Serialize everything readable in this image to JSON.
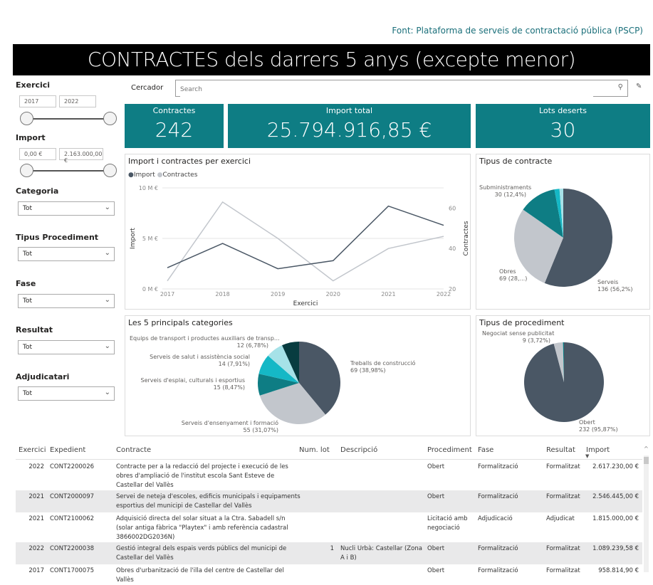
{
  "source": "Font: Plataforma de serveis de contractació pública (PSCP)",
  "title": "CONTRACTES dels darrers 5 anys (excepte menor)",
  "filters": {
    "exercici": {
      "label": "Exercici",
      "min": "2017",
      "max": "2022"
    },
    "import": {
      "label": "Import",
      "min": "0,00 €",
      "max": "2.163.000,00 €"
    },
    "categoria": {
      "label": "Categoria",
      "value": "Tot"
    },
    "tipus_procediment": {
      "label": "Tipus Procediment",
      "value": "Tot"
    },
    "fase": {
      "label": "Fase",
      "value": "Tot"
    },
    "resultat": {
      "label": "Resultat",
      "value": "Tot"
    },
    "adjudicatari": {
      "label": "Adjudicatari",
      "value": "Tot"
    }
  },
  "search": {
    "label": "Cercador",
    "placeholder": "Search"
  },
  "kpis": [
    {
      "label": "Contractes",
      "value": "242"
    },
    {
      "label": "Import total",
      "value": "25.794.916,85 €"
    },
    {
      "label": "Lots deserts",
      "value": "30"
    }
  ],
  "chart_data": [
    {
      "type": "line",
      "title": "Import i contractes per exercici",
      "xlabel": "Exercici",
      "ylabel": "Import",
      "y2label": "Contractes",
      "x": [
        "2017",
        "2018",
        "2019",
        "2020",
        "2021",
        "2022"
      ],
      "series": [
        {
          "name": "Import",
          "axis": "left",
          "unit": "M €",
          "values": [
            2.1,
            4.5,
            2.0,
            2.8,
            8.2,
            6.3
          ],
          "color": "#4a5765"
        },
        {
          "name": "Contractes",
          "axis": "right",
          "values": [
            24,
            63,
            45,
            24,
            40,
            46
          ],
          "color": "#c2c6cc"
        }
      ],
      "ylim": [
        0,
        10
      ],
      "yticks": [
        "0 M €",
        "5 M €",
        "10 M €"
      ],
      "y2lim": [
        20,
        70
      ],
      "y2ticks": [
        "20",
        "40",
        "60"
      ],
      "legend": "top-left"
    },
    {
      "type": "pie",
      "title": "Tipus de contracte",
      "slices": [
        {
          "label": "Serveis",
          "value": 136,
          "text": "136 (56,2%)",
          "color": "#4a5765"
        },
        {
          "label": "Obres",
          "value": 69,
          "text": "69 (28,...)",
          "color": "#c2c6cc"
        },
        {
          "label": "Subministraments",
          "value": 30,
          "text": "30 (12,4%)",
          "color": "#0e7d84"
        },
        {
          "label": null,
          "value": 4,
          "color": "#15b8c6"
        },
        {
          "label": null,
          "value": 3,
          "color": "#a6e2e8"
        }
      ]
    },
    {
      "type": "pie",
      "title": "Les 5 principals categories",
      "slices": [
        {
          "label": "Treballs de construcció",
          "value": 69,
          "text": "69 (38,98%)",
          "color": "#4a5765"
        },
        {
          "label": "Serveis d'ensenyament i formació",
          "value": 55,
          "text": "55 (31,07%)",
          "color": "#c2c6cc"
        },
        {
          "label": "Serveis d'esplai, culturals i esportius",
          "value": 15,
          "text": "15 (8,47%)",
          "color": "#0e7d84"
        },
        {
          "label": "Serveis de salut i assistència social",
          "value": 14,
          "text": "14 (7,91%)",
          "color": "#15b8c6"
        },
        {
          "label": "Equips de transport i productes auxiliars de transp...",
          "value": 12,
          "text": "12 (6,78%)",
          "color": "#a6e2e8"
        },
        {
          "label": null,
          "value": 12,
          "color": "#083c40"
        }
      ]
    },
    {
      "type": "pie",
      "title": "Tipus de procediment",
      "slices": [
        {
          "label": "Obert",
          "value": 232,
          "text": "232 (95,87%)",
          "color": "#4a5765"
        },
        {
          "label": "Negociat sense publicitat",
          "value": 9,
          "text": "9 (3,72%)",
          "color": "#c2c6cc"
        },
        {
          "label": null,
          "value": 1,
          "color": "#0e7d84"
        }
      ]
    }
  ],
  "table": {
    "columns": [
      "Exercici",
      "Expedient",
      "Contracte",
      "Num. lot",
      "Descripció",
      "Procediment",
      "Fase",
      "Resultat",
      "Import"
    ],
    "rows": [
      [
        "2022",
        "CONT2200026",
        "Contracte per a la redacció del projecte i execució de les obres d'ampliació de l'institut escola Sant Esteve de Castellar del Vallès",
        "",
        "",
        "Obert",
        "Formalització",
        "Formalitzat",
        "2.617.230,00 €"
      ],
      [
        "2021",
        "CONT2000097",
        "Servei de neteja d'escoles, edificis municipals i equipaments esportius del municipi de Castellar del Vallès",
        "",
        "",
        "Obert",
        "Formalització",
        "Formalitzat",
        "2.546.445,00 €"
      ],
      [
        "2021",
        "CONT2100062",
        "Adquisició directa del solar situat a la Ctra. Sabadell s/n (solar antiga fàbrica \"Playtex\" i amb referència cadastral 3866002DG2036N)",
        "",
        "",
        "Licitació amb negociació",
        "Adjudicació",
        "Adjudicat",
        "1.815.000,00 €"
      ],
      [
        "2022",
        "CONT2200038",
        "Gestió integral dels espais verds públics del municipi de Castellar del Vallès",
        "1",
        "Nucli Urbà: Castellar (Zona A i B)",
        "Obert",
        "Formalització",
        "Formalitzat",
        "1.089.239,58 €"
      ],
      [
        "2017",
        "CONT1700075",
        "Obres d'urbanització de l'illa del centre de Castellar del Vallès",
        "",
        "",
        "Obert",
        "Formalització",
        "Formalitzat",
        "958.814,90 €"
      ]
    ]
  }
}
